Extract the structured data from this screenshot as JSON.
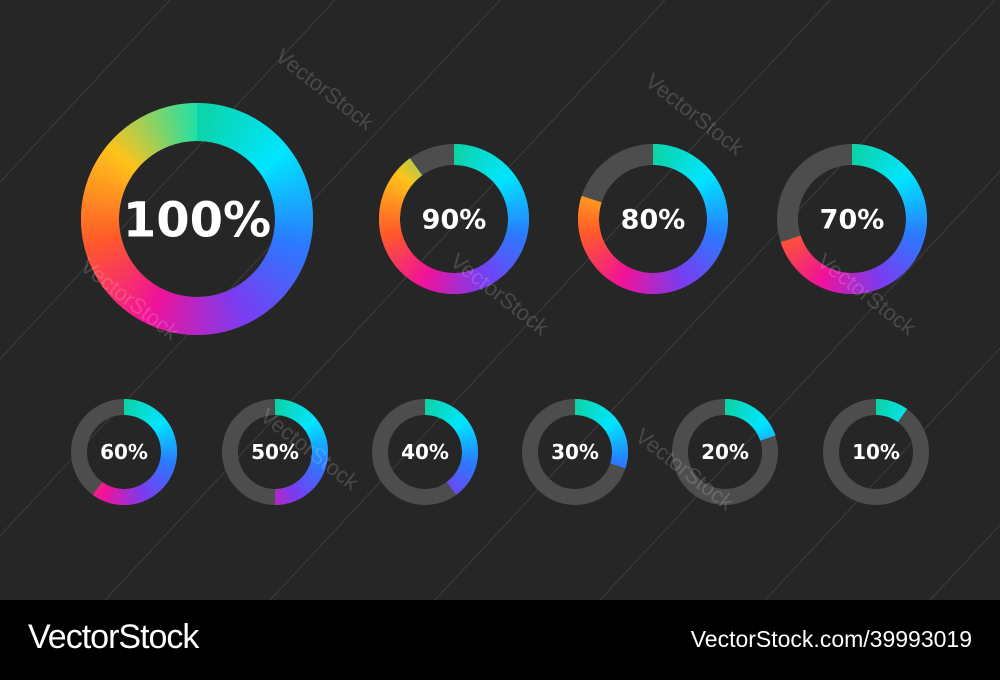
{
  "chart_data": {
    "type": "donut-progress",
    "values": [
      100,
      90,
      80,
      70,
      60,
      50,
      40,
      30,
      20,
      10
    ],
    "labels": [
      "100%",
      "90%",
      "80%",
      "70%",
      "60%",
      "50%",
      "40%",
      "30%",
      "20%",
      "10%"
    ],
    "max": 100
  },
  "colors": {
    "background": "#262626",
    "track": "#4d4d4d",
    "label": "#ffffff",
    "gradient_stops": [
      "#0dd3a6",
      "#00e5ff",
      "#2a7bff",
      "#7a3cf0",
      "#f0129a",
      "#ff5a2a",
      "#ffc21a",
      "#1fe0a8"
    ]
  },
  "watermark": {
    "text": "VectorStock"
  },
  "footer": {
    "logo": "VectorStock",
    "image_id": "VectorStock.com/39993019"
  }
}
